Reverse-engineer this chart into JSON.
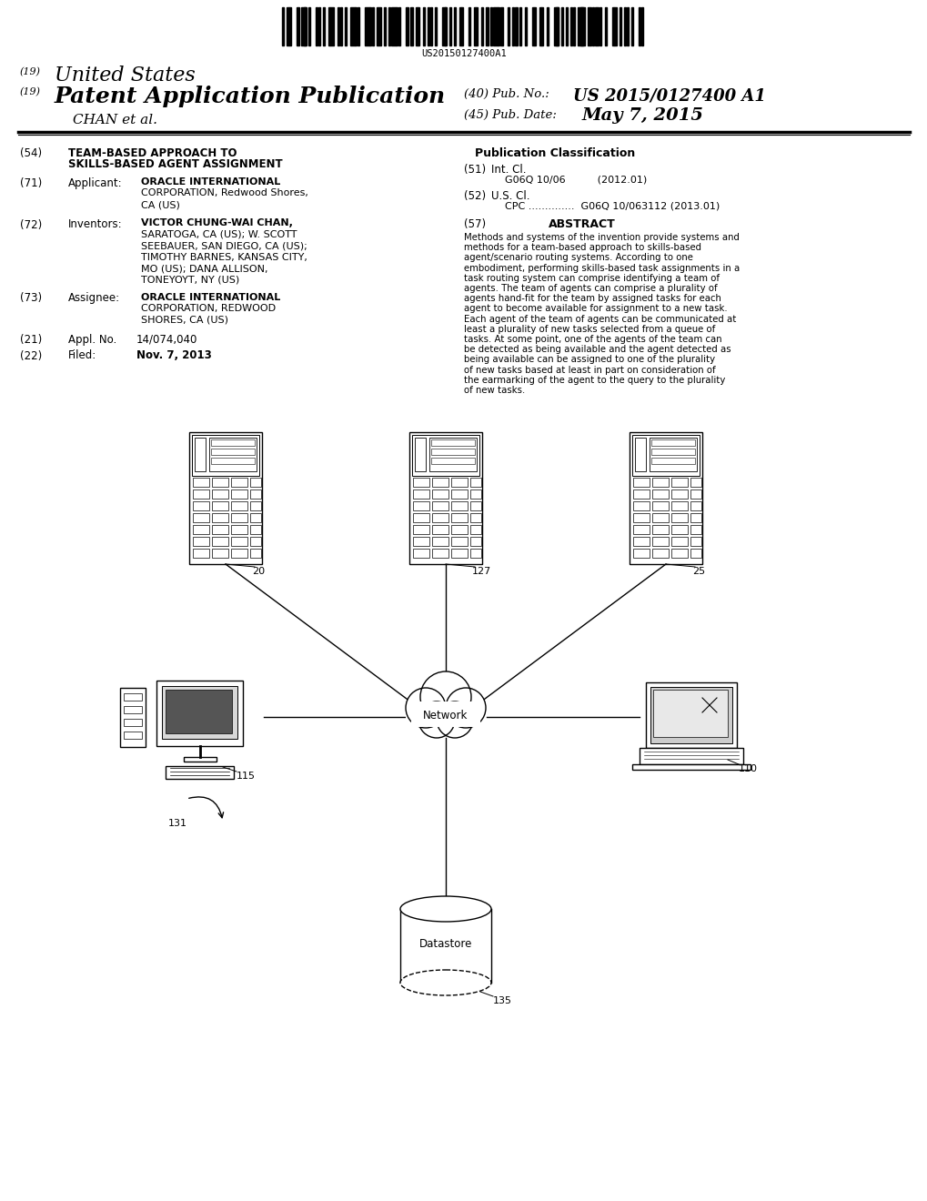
{
  "background_color": "#ffffff",
  "barcode_text": "US20150127400A1",
  "title_line1": "(19) United States",
  "title_line2": "(19) Patent Application Publication",
  "pub_no_label": "(40) Pub. No.:",
  "pub_no_value": "US 2015/0127400 A1",
  "pub_date_label": "(45) Pub. Date:",
  "pub_date_value": "May 7, 2015",
  "inventors_label": "CHAN et al.",
  "section54_label": "(54)",
  "section54_title_line1": "TEAM-BASED APPROACH TO",
  "section54_title_line2": "SKILLS-BASED AGENT ASSIGNMENT",
  "section71_label": "(71)",
  "section71_name": "Applicant:",
  "section71_text_line1": "ORACLE INTERNATIONAL",
  "section71_text_line2": "CORPORATION, Redwood Shores,",
  "section71_text_line3": "CA (US)",
  "section72_label": "(72)",
  "section72_name": "Inventors:",
  "section72_text_line1": "VICTOR CHUNG-WAI CHAN,",
  "section72_text_line2": "SARATOGA, CA (US); W. SCOTT",
  "section72_text_line3": "SEEBAUER, SAN DIEGO, CA (US);",
  "section72_text_line4": "TIMOTHY BARNES, KANSAS CITY,",
  "section72_text_line5": "MO (US); DANA ALLISON,",
  "section72_text_line6": "TONEYOYT, NY (US)",
  "section73_label": "(73)",
  "section73_name": "Assignee:",
  "section73_text_line1": "ORACLE INTERNATIONAL",
  "section73_text_line2": "CORPORATION, REDWOOD",
  "section73_text_line3": "SHORES, CA (US)",
  "section21_label": "(21)",
  "section21_name": "Appl. No.",
  "section21_text": "14/074,040",
  "section22_label": "(22)",
  "section22_name": "Filed:",
  "section22_text": "Nov. 7, 2013",
  "pub_class_title": "Publication Classification",
  "section51_label": "(51)",
  "section51_name": "Int. Cl.",
  "section51_subtext": "G06Q 10/06          (2012.01)",
  "section52_label": "(52)",
  "section52_name": "U.S. Cl.",
  "section52_subtext": "CPC ..............  G06Q 10/063112 (2013.01)",
  "section57_label": "(57)",
  "section57_name": "ABSTRACT",
  "abstract_text": "Methods and systems of the invention provide systems and methods for a team-based approach to skills-based agent/scenario routing systems. According to one embodiment, performing skills-based task assignments in a task routing system can comprise identifying a team of agents. The team of agents can comprise a plurality of agents hand-fit for the team by assigned tasks for each agent to become available for assignment to a new task. Each agent of the team of agents can be communicated at least a plurality of new tasks selected from a queue of tasks. At some point, one of the agents of the team can be detected as being available and the agent detected as being available can be assigned to one of the plurality of new tasks based at least in part on consideration of the earmarking of the agent to the query to the plurality of new tasks.",
  "diagram_label_20": "20",
  "diagram_label_25": "25",
  "diagram_label_127": "127",
  "diagram_label_115": "115",
  "diagram_label_110": "110",
  "diagram_label_131": "131",
  "diagram_label_135": "135",
  "network_label": "Network",
  "database_label": "Datastore"
}
